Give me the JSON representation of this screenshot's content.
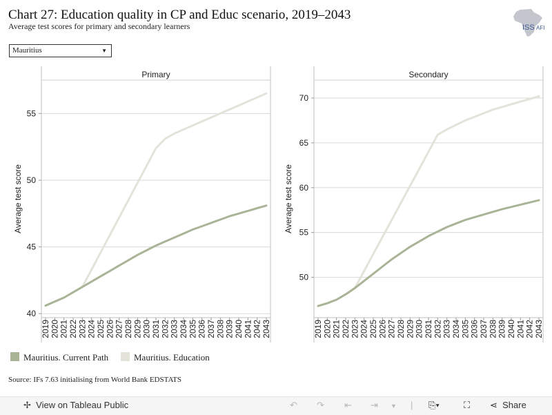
{
  "header": {
    "title": "Chart 27: Education quality in CP and Educ scenario, 2019–2043",
    "subtitle": "Average test scores for primary and secondary learners",
    "logo_text": "ISS",
    "logo_suffix": "AFI"
  },
  "filter": {
    "selected": "Mauritius"
  },
  "colors": {
    "current_path": "#a9b497",
    "education": "#e3e3da",
    "grid": "#d8d8d8"
  },
  "chart_data": [
    {
      "type": "line",
      "title": "Primary",
      "ylabel": "Average test score",
      "ylim": [
        39.7,
        57.5
      ],
      "yticks": [
        "40",
        "45",
        "50",
        "55"
      ],
      "x": [
        "2019",
        "2020",
        "2021",
        "2022",
        "2023",
        "2024",
        "2025",
        "2026",
        "2027",
        "2028",
        "2029",
        "2030",
        "2031",
        "2032",
        "2033",
        "2034",
        "2035",
        "2036",
        "2037",
        "2038",
        "2039",
        "2040",
        "2041",
        "2042",
        "2043"
      ],
      "series": [
        {
          "name": "Mauritius. Current Path",
          "values": [
            40.6,
            40.9,
            41.2,
            41.6,
            42.0,
            42.4,
            42.8,
            43.2,
            43.6,
            44.0,
            44.4,
            44.75,
            45.1,
            45.4,
            45.7,
            46.0,
            46.3,
            46.55,
            46.8,
            47.05,
            47.3,
            47.5,
            47.7,
            47.9,
            48.1
          ]
        },
        {
          "name": "Mauritius. Education",
          "values": [
            40.6,
            40.9,
            41.2,
            41.6,
            42.0,
            43.3,
            44.6,
            45.9,
            47.2,
            48.5,
            49.8,
            51.1,
            52.4,
            53.1,
            53.5,
            53.8,
            54.1,
            54.4,
            54.7,
            55.0,
            55.3,
            55.6,
            55.9,
            56.2,
            56.5
          ]
        }
      ]
    },
    {
      "type": "line",
      "title": "Secondary",
      "ylabel": "Average test score",
      "ylim": [
        45.5,
        72.0
      ],
      "yticks": [
        "50",
        "55",
        "60",
        "65",
        "70"
      ],
      "x": [
        "2019",
        "2020",
        "2021",
        "2022",
        "2023",
        "2024",
        "2025",
        "2026",
        "2027",
        "2028",
        "2029",
        "2030",
        "2031",
        "2032",
        "2033",
        "2034",
        "2035",
        "2036",
        "2037",
        "2038",
        "2039",
        "2040",
        "2041",
        "2042",
        "2043"
      ],
      "series": [
        {
          "name": "Mauritius. Current Path",
          "values": [
            46.8,
            47.1,
            47.5,
            48.1,
            48.8,
            49.6,
            50.4,
            51.2,
            52.0,
            52.7,
            53.4,
            54.0,
            54.6,
            55.1,
            55.6,
            56.0,
            56.4,
            56.7,
            57.0,
            57.3,
            57.6,
            57.85,
            58.1,
            58.35,
            58.6
          ]
        },
        {
          "name": "Mauritius. Education",
          "values": [
            46.8,
            47.1,
            47.5,
            48.1,
            48.8,
            50.7,
            52.6,
            54.5,
            56.4,
            58.3,
            60.2,
            62.1,
            64.0,
            65.9,
            66.5,
            67.0,
            67.5,
            67.9,
            68.3,
            68.7,
            69.0,
            69.3,
            69.6,
            69.9,
            70.2
          ]
        }
      ]
    }
  ],
  "legend": [
    {
      "label": "Mauritius. Current Path"
    },
    {
      "label": "Mauritius. Education"
    }
  ],
  "source": "Source: IFs 7.63 initialising from World Bank EDSTATS",
  "toolbar": {
    "view_label": "View on Tableau Public",
    "share_label": "Share"
  }
}
